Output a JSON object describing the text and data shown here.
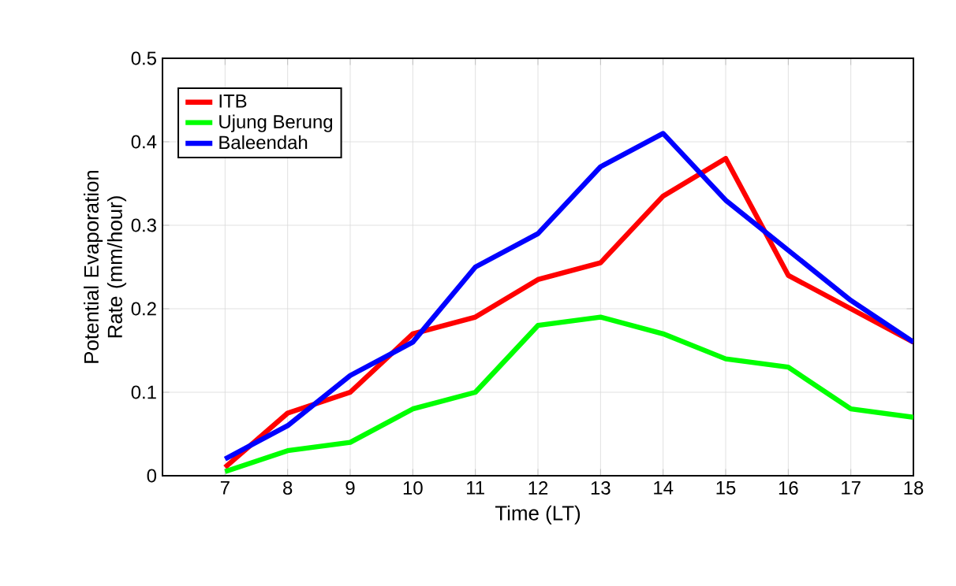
{
  "chart_data": {
    "type": "line",
    "xlabel": "Time (LT)",
    "ylabel": "Potential Evaporation Rate (mm/hour)",
    "x": [
      7,
      8,
      9,
      10,
      11,
      12,
      13,
      14,
      15,
      16,
      17,
      18
    ],
    "series": [
      {
        "name": "ITB",
        "color": "#ff0000",
        "values": [
          0.01,
          0.075,
          0.1,
          0.17,
          0.19,
          0.235,
          0.255,
          0.335,
          0.38,
          0.24,
          0.2,
          0.16
        ]
      },
      {
        "name": "Ujung Berung",
        "color": "#00ff00",
        "values": [
          0.005,
          0.03,
          0.04,
          0.08,
          0.1,
          0.18,
          0.19,
          0.17,
          0.14,
          0.13,
          0.08,
          0.07
        ]
      },
      {
        "name": "Baleendah",
        "color": "#0000ff",
        "values": [
          0.02,
          0.06,
          0.12,
          0.16,
          0.25,
          0.29,
          0.37,
          0.41,
          0.33,
          0.27,
          0.21,
          0.16
        ]
      }
    ],
    "xlim": [
      6,
      18
    ],
    "ylim": [
      0,
      0.5
    ],
    "xticks": [
      7,
      8,
      9,
      10,
      11,
      12,
      13,
      14,
      15,
      16,
      17,
      18
    ],
    "yticks": [
      0,
      0.1,
      0.2,
      0.3,
      0.4,
      0.5
    ],
    "grid": true,
    "legend": "top left",
    "marker": "none",
    "line_style": "solid"
  }
}
